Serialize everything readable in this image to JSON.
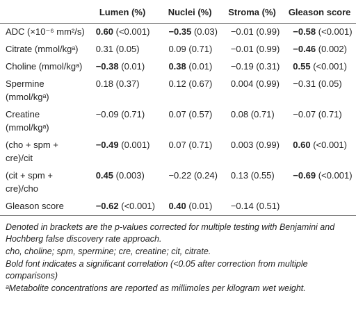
{
  "table": {
    "header": [
      "Lumen (%)",
      "Nuclei (%)",
      "Stroma (%)",
      "Gleason score"
    ],
    "rows": [
      {
        "label": "ADC (×10⁻⁶ mm²/s)",
        "cells": [
          {
            "r": "0.60",
            "p": "(<0.001)",
            "bold": true
          },
          {
            "r": "−0.35",
            "p": "(0.03)",
            "bold": true
          },
          {
            "r": "−0.01",
            "p": "(0.99)",
            "bold": false
          },
          {
            "r": "−0.58",
            "p": "(<0.001)",
            "bold": true
          }
        ]
      },
      {
        "label": "Citrate (mmol/kgᵃ)",
        "cells": [
          {
            "r": "0.31",
            "p": "(0.05)",
            "bold": false
          },
          {
            "r": "0.09",
            "p": "(0.71)",
            "bold": false
          },
          {
            "r": "−0.01",
            "p": "(0.99)",
            "bold": false
          },
          {
            "r": "−0.46",
            "p": "(0.002)",
            "bold": true
          }
        ]
      },
      {
        "label": "Choline (mmol/kgᵃ)",
        "cells": [
          {
            "r": "−0.38",
            "p": "(0.01)",
            "bold": true
          },
          {
            "r": "0.38",
            "p": "(0.01)",
            "bold": true
          },
          {
            "r": "−0.19",
            "p": "(0.31)",
            "bold": false
          },
          {
            "r": "0.55",
            "p": "(<0.001)",
            "bold": true
          }
        ]
      },
      {
        "label": "Spermine (mmol/kgᵃ)",
        "cells": [
          {
            "r": "0.18",
            "p": "(0.37)",
            "bold": false
          },
          {
            "r": "0.12",
            "p": "(0.67)",
            "bold": false
          },
          {
            "r": "0.004",
            "p": "(0.99)",
            "bold": false
          },
          {
            "r": "−0.31",
            "p": "(0.05)",
            "bold": false
          }
        ]
      },
      {
        "label": "Creatine (mmol/kgᵃ)",
        "cells": [
          {
            "r": "−0.09",
            "p": "(0.71)",
            "bold": false
          },
          {
            "r": "0.07",
            "p": "(0.57)",
            "bold": false
          },
          {
            "r": "0.08",
            "p": "(0.71)",
            "bold": false
          },
          {
            "r": "−0.07",
            "p": "(0.71)",
            "bold": false
          }
        ]
      },
      {
        "label": "(cho + spm + cre)/cit",
        "cells": [
          {
            "r": "−0.49",
            "p": "(0.001)",
            "bold": true
          },
          {
            "r": "0.07",
            "p": "(0.71)",
            "bold": false
          },
          {
            "r": "0.003",
            "p": "(0.99)",
            "bold": false
          },
          {
            "r": "0.60",
            "p": "(<0.001)",
            "bold": true
          }
        ]
      },
      {
        "label": "(cit + spm + cre)/cho",
        "cells": [
          {
            "r": "0.45",
            "p": "(0.003)",
            "bold": true
          },
          {
            "r": "−0.22",
            "p": "(0.24)",
            "bold": false
          },
          {
            "r": "0.13",
            "p": "(0.55)",
            "bold": false
          },
          {
            "r": "−0.69",
            "p": "(<0.001)",
            "bold": true
          }
        ]
      },
      {
        "label": "Gleason score",
        "cells": [
          {
            "r": "−0.62",
            "p": "(<0.001)",
            "bold": true
          },
          {
            "r": "0.40",
            "p": "(0.01)",
            "bold": true
          },
          {
            "r": "−0.14",
            "p": "(0.51)",
            "bold": false
          },
          null
        ]
      }
    ]
  },
  "footnotes": [
    "Denoted in brackets are the p-values corrected for multiple testing with Benjamini and Hochberg false discovery rate approach.",
    "cho, choline; spm, spermine; cre, creatine; cit, citrate.",
    "Bold font indicates a significant correlation (<0.05 after correction from multiple comparisons)",
    "ᵃMetabolite concentrations are reported as millimoles per kilogram wet weight."
  ]
}
